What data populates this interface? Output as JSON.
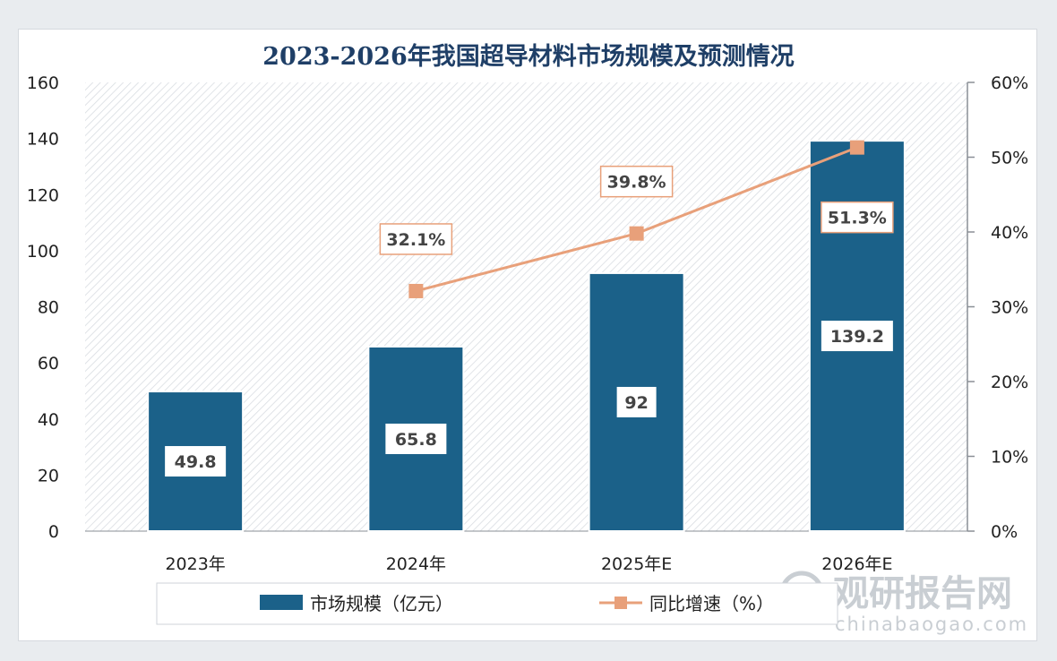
{
  "chart_data": {
    "type": "bar",
    "title": "2023-2026年我国超导材料市场规模及预测情况",
    "categories": [
      "2023年",
      "2024年",
      "2025年E",
      "2026年E"
    ],
    "series": [
      {
        "name": "市场规模（亿元）",
        "type": "bar",
        "axis": "left",
        "values": [
          49.8,
          65.8,
          92,
          139.2
        ],
        "labels": [
          "49.8",
          "65.8",
          "92",
          "139.2"
        ]
      },
      {
        "name": "同比增速（%）",
        "type": "line",
        "axis": "right",
        "values": [
          null,
          32.1,
          39.8,
          51.3
        ],
        "labels": [
          "",
          "32.1%",
          "39.8%",
          "51.3%"
        ]
      }
    ],
    "y_left": {
      "min": 0,
      "max": 160,
      "step": 20,
      "ticks": [
        "0",
        "20",
        "40",
        "60",
        "80",
        "100",
        "120",
        "140",
        "160"
      ]
    },
    "y_right": {
      "min": 0,
      "max": 60,
      "step": 10,
      "ticks": [
        "0%",
        "10%",
        "20%",
        "30%",
        "40%",
        "50%",
        "60%"
      ]
    },
    "legend_position": "bottom",
    "colors": {
      "bar": "#1b6189",
      "line": "#e8a07a",
      "title": "#1f3f67"
    }
  },
  "watermark": {
    "brand": "观研报告网",
    "site": "chinabaogao.com"
  }
}
